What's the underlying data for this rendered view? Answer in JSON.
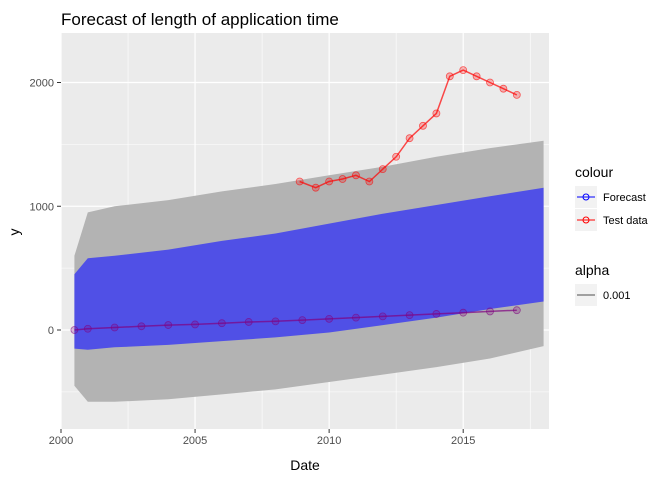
{
  "chart_data": {
    "type": "line",
    "title": "Forecast of length of application time",
    "xlabel": "Date",
    "ylabel": "y",
    "xlim": [
      2000.0,
      2018.2
    ],
    "ylim": [
      -800,
      2400
    ],
    "x_ticks": [
      "2000",
      "2005",
      "2010",
      "2015"
    ],
    "x_tick_values": [
      2000,
      2005,
      2010,
      2015
    ],
    "y_ticks": [
      "0",
      "1000",
      "2000"
    ],
    "y_tick_values": [
      0,
      1000,
      2000
    ],
    "grid": true,
    "legend_placement": "right",
    "legend": {
      "colour": {
        "title": "colour",
        "entries": [
          {
            "label": "Forecast",
            "color": "#0000ff"
          },
          {
            "label": "Test data",
            "color": "#ff0000"
          }
        ]
      },
      "alpha": {
        "title": "alpha",
        "entries": [
          {
            "label": "0.001",
            "color": "#4d4d4d"
          }
        ]
      }
    },
    "bands": [
      {
        "role": "outer interval",
        "color": "#b3b3b3",
        "x": [
          2000.5,
          2001,
          2002,
          2004,
          2006,
          2008,
          2010,
          2012,
          2014,
          2016,
          2018
        ],
        "upper": [
          600,
          950,
          1000,
          1050,
          1120,
          1180,
          1250,
          1320,
          1400,
          1470,
          1530
        ],
        "lower": [
          -450,
          -580,
          -580,
          -560,
          -520,
          -480,
          -420,
          -360,
          -300,
          -230,
          -130
        ]
      },
      {
        "role": "inner interval",
        "color": "#5050e6",
        "x": [
          2000.5,
          2001,
          2002,
          2004,
          2006,
          2008,
          2010,
          2012,
          2014,
          2016,
          2018
        ],
        "upper": [
          450,
          580,
          600,
          650,
          720,
          780,
          860,
          940,
          1010,
          1080,
          1150
        ],
        "lower": [
          -150,
          -160,
          -140,
          -120,
          -90,
          -60,
          -20,
          40,
          100,
          170,
          230
        ]
      }
    ],
    "series": [
      {
        "name": "Forecast",
        "color": "#800080",
        "x": [
          2000.5,
          2001,
          2002,
          2003,
          2004,
          2005,
          2006,
          2007,
          2008,
          2009,
          2010,
          2011,
          2012,
          2013,
          2014,
          2015,
          2016,
          2017
        ],
        "y": [
          0,
          10,
          20,
          30,
          40,
          45,
          55,
          65,
          70,
          80,
          90,
          100,
          110,
          120,
          130,
          140,
          150,
          160
        ]
      },
      {
        "name": "Test data",
        "color": "#ff0000",
        "x": [
          2008.9,
          2009.5,
          2010,
          2010.5,
          2011,
          2011.5,
          2012,
          2012.5,
          2013,
          2013.5,
          2014,
          2014.5,
          2015,
          2015.5,
          2016,
          2016.5,
          2017
        ],
        "y": [
          1200,
          1150,
          1200,
          1220,
          1250,
          1200,
          1300,
          1400,
          1550,
          1650,
          1750,
          2050,
          2100,
          2050,
          2000,
          1950,
          1900
        ]
      }
    ]
  }
}
